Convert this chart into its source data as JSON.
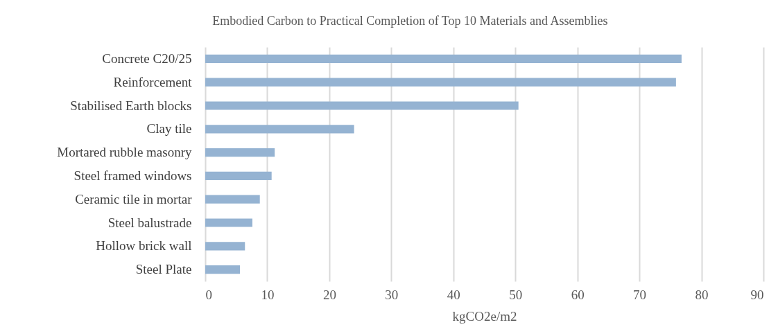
{
  "chart_data": {
    "type": "bar",
    "orientation": "horizontal",
    "title": "Embodied Carbon to Practical Completion of Top 10 Materials and Assemblies",
    "xlabel": "kgCO2e/m2",
    "categories": [
      "Concrete C20/25",
      "Reinforcement",
      "Stabilised Earth blocks",
      "Clay tile",
      "Mortared rubble masonry",
      "Steel framed windows",
      "Ceramic tile in mortar",
      "Steel balustrade",
      "Hollow brick wall",
      "Steel Plate"
    ],
    "values": [
      76.8,
      75.9,
      50.5,
      24.0,
      11.2,
      10.7,
      8.8,
      7.6,
      6.4,
      5.6
    ],
    "color": "#95b3d2",
    "xlim": [
      0,
      90
    ],
    "xticks": [
      0,
      10,
      20,
      30,
      40,
      50,
      60,
      70,
      80,
      90
    ],
    "grid": "x"
  }
}
